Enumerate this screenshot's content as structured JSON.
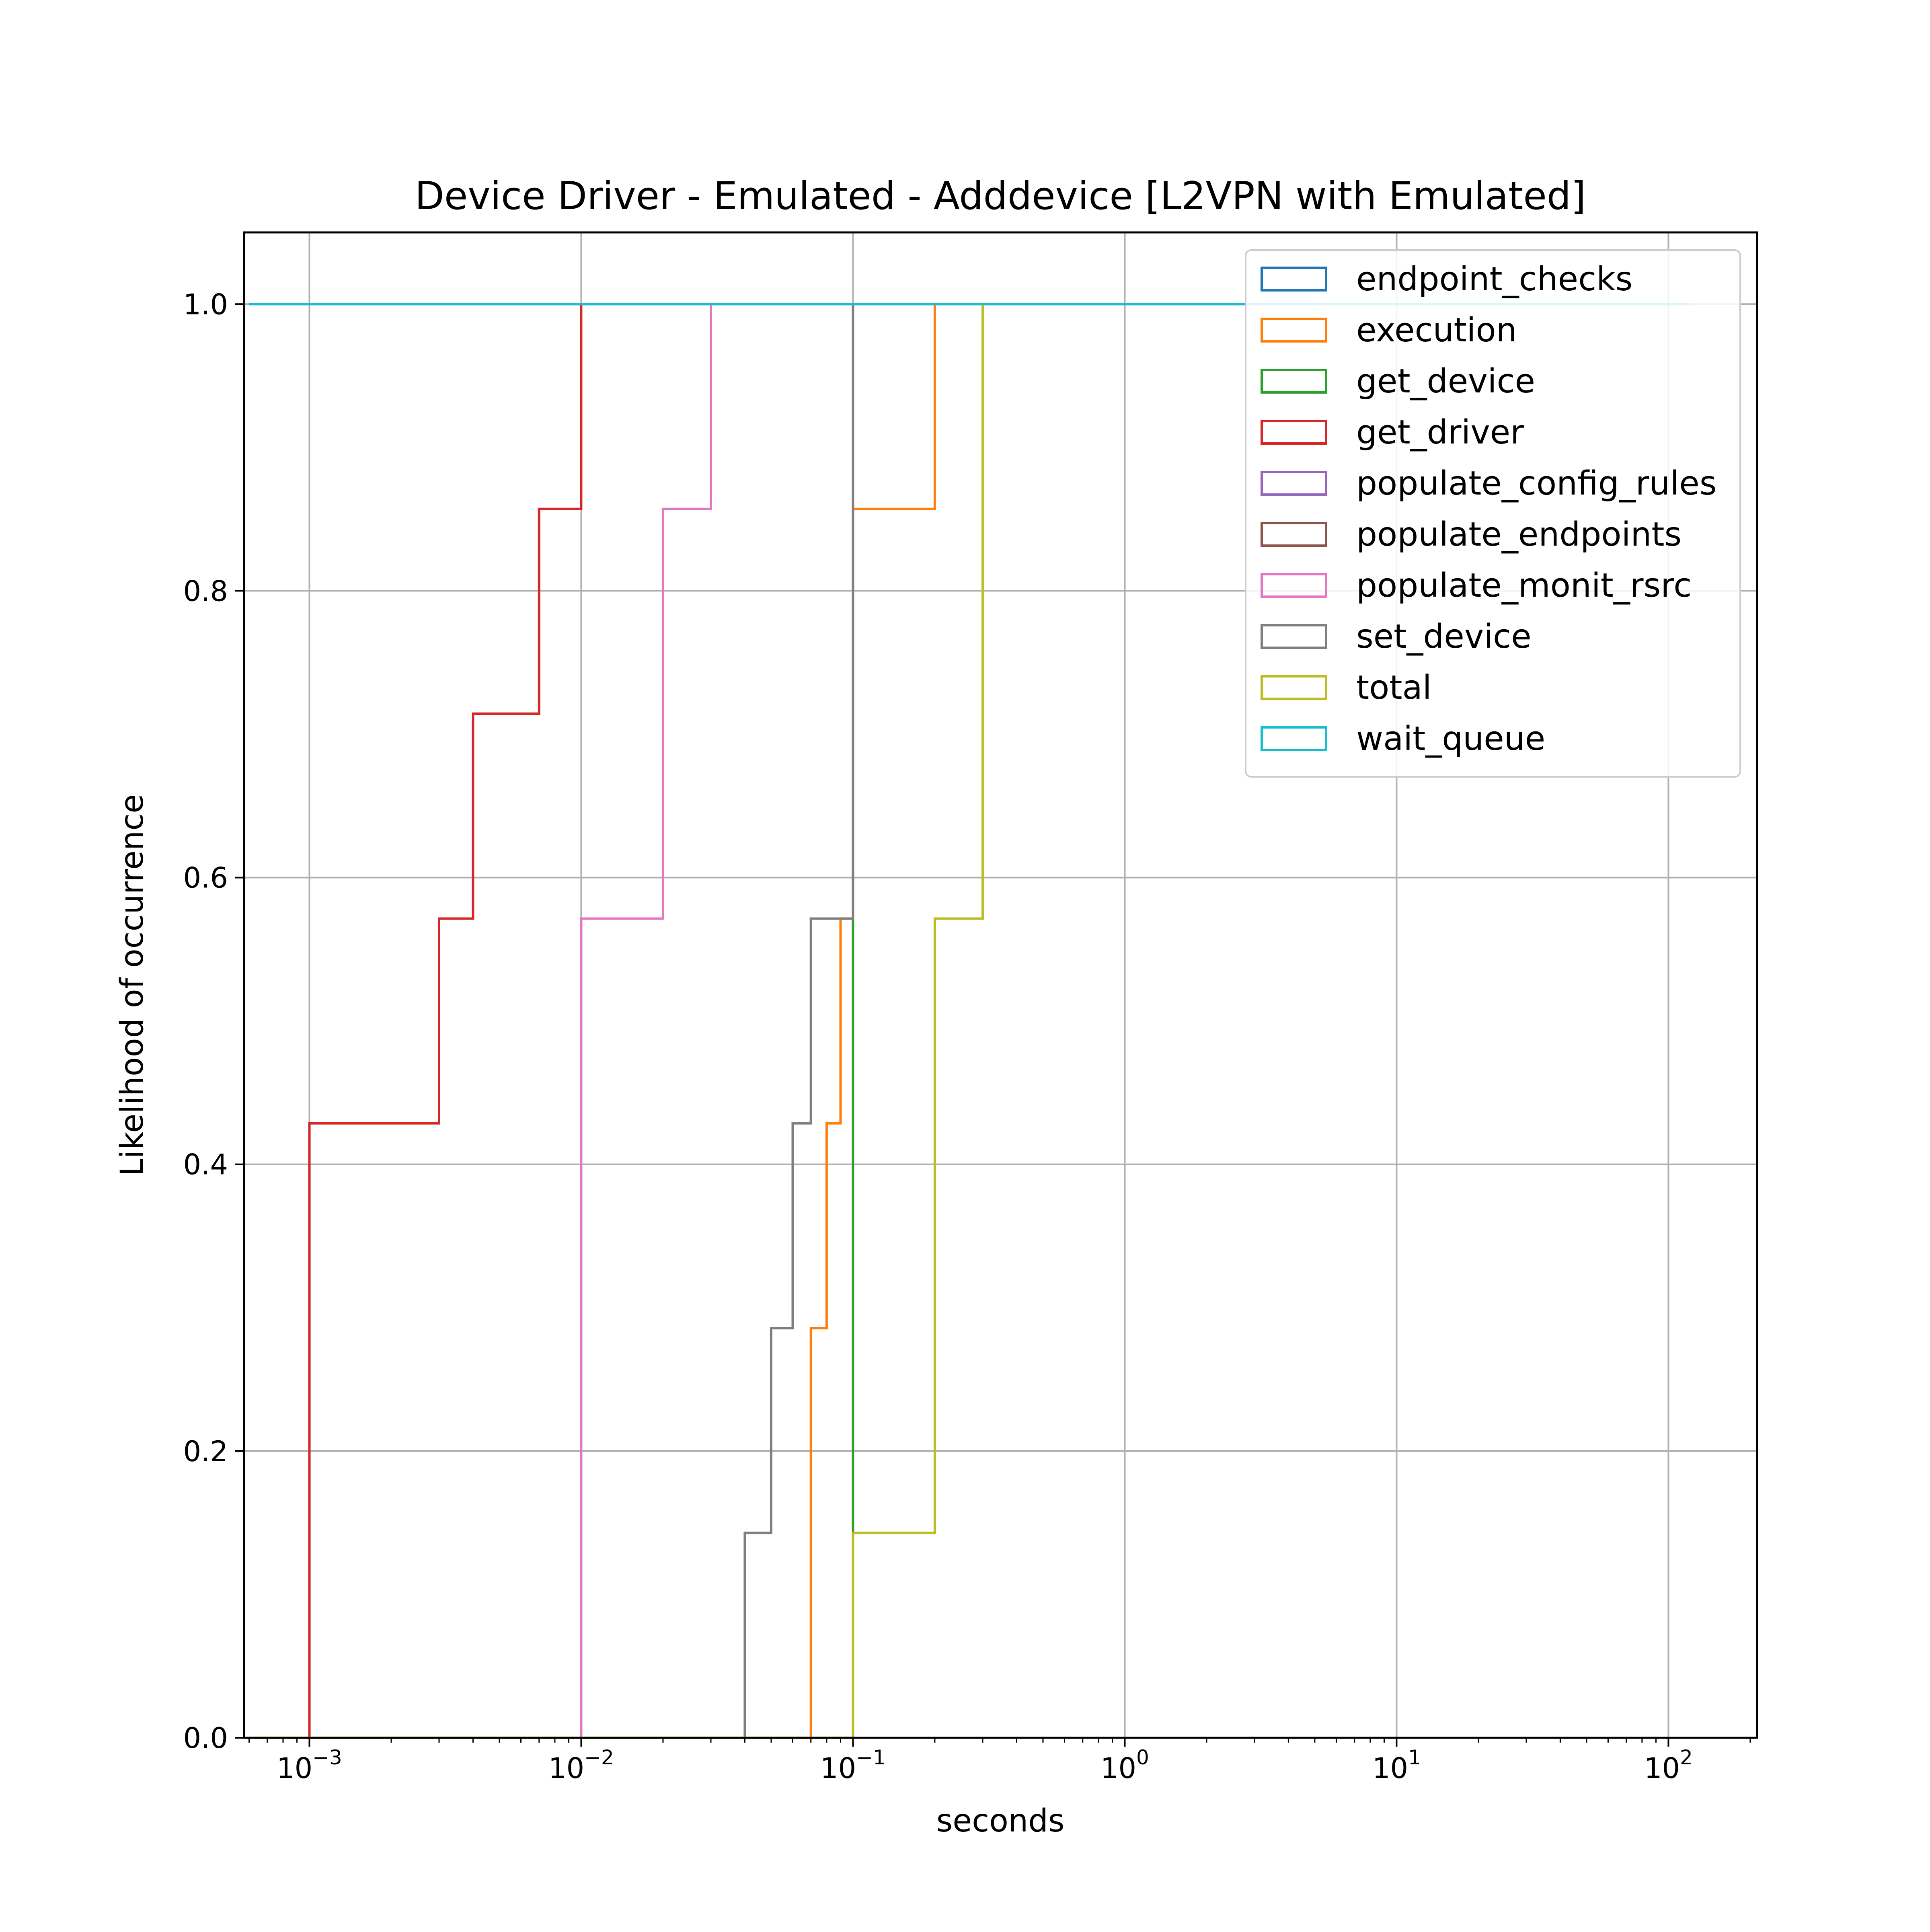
{
  "chart_data": {
    "type": "step-histogram",
    "title": "Device Driver - Emulated - Adddevice [L2VPN with Emulated]",
    "xlabel": "seconds",
    "ylabel": "Likelihood of occurrence",
    "xscale": "log",
    "xlim": [
      0.000575,
      212
    ],
    "ylim": [
      0,
      1.05
    ],
    "grid": true,
    "legend_position": "top-right",
    "x_ticks": [
      {
        "value": 0.001,
        "base": "10",
        "exp": "−3"
      },
      {
        "value": 0.01,
        "base": "10",
        "exp": "−2"
      },
      {
        "value": 0.1,
        "base": "10",
        "exp": "−1"
      },
      {
        "value": 1,
        "base": "10",
        "exp": "0"
      },
      {
        "value": 10,
        "base": "10",
        "exp": "1"
      },
      {
        "value": 100,
        "base": "10",
        "exp": "2"
      }
    ],
    "y_ticks": [
      {
        "value": 0.0,
        "label": "0.0"
      },
      {
        "value": 0.2,
        "label": "0.2"
      },
      {
        "value": 0.4,
        "label": "0.4"
      },
      {
        "value": 0.6,
        "label": "0.6"
      },
      {
        "value": 0.8,
        "label": "0.8"
      },
      {
        "value": 1.0,
        "label": "1.0"
      }
    ],
    "series": [
      {
        "name": "endpoint_checks",
        "color": "#1f77b4",
        "points": [
          [
            0.0006,
            1.0
          ],
          [
            120,
            1.0
          ]
        ]
      },
      {
        "name": "execution",
        "color": "#ff7f0e",
        "points": [
          [
            0.0006,
            0.0
          ],
          [
            0.07,
            0.0
          ],
          [
            0.07,
            0.2857
          ],
          [
            0.08,
            0.2857
          ],
          [
            0.08,
            0.4286
          ],
          [
            0.09,
            0.4286
          ],
          [
            0.09,
            0.5714
          ],
          [
            0.1,
            0.5714
          ],
          [
            0.1,
            0.8571
          ],
          [
            0.2,
            0.8571
          ],
          [
            0.2,
            1.0
          ]
        ]
      },
      {
        "name": "get_device",
        "color": "#2ca02c",
        "points": [
          [
            0.1,
            0.1429
          ],
          [
            0.1,
            0.5714
          ]
        ]
      },
      {
        "name": "get_driver",
        "color": "#d62728",
        "points": [
          [
            0.001,
            0.0
          ],
          [
            0.001,
            0.4286
          ],
          [
            0.003,
            0.4286
          ],
          [
            0.003,
            0.5714
          ],
          [
            0.004,
            0.5714
          ],
          [
            0.004,
            0.7143
          ],
          [
            0.007,
            0.7143
          ],
          [
            0.007,
            0.8571
          ],
          [
            0.01,
            0.8571
          ],
          [
            0.01,
            1.0
          ]
        ]
      },
      {
        "name": "populate_config_rules",
        "color": "#9467bd",
        "points": []
      },
      {
        "name": "populate_endpoints",
        "color": "#8c564b",
        "points": []
      },
      {
        "name": "populate_monit_rsrc",
        "color": "#e377c2",
        "points": [
          [
            0.01,
            0.0
          ],
          [
            0.01,
            0.5714
          ],
          [
            0.02,
            0.5714
          ],
          [
            0.02,
            0.8571
          ],
          [
            0.03,
            0.8571
          ],
          [
            0.03,
            1.0
          ]
        ]
      },
      {
        "name": "set_device",
        "color": "#7f7f7f",
        "points": [
          [
            0.04,
            0.0
          ],
          [
            0.04,
            0.1429
          ],
          [
            0.05,
            0.1429
          ],
          [
            0.05,
            0.2857
          ],
          [
            0.06,
            0.2857
          ],
          [
            0.06,
            0.4286
          ],
          [
            0.07,
            0.4286
          ],
          [
            0.07,
            0.5714
          ],
          [
            0.1,
            0.5714
          ],
          [
            0.1,
            1.0
          ]
        ]
      },
      {
        "name": "total",
        "color": "#bcbd22",
        "points": [
          [
            0.0006,
            0.0
          ],
          [
            0.1,
            0.0
          ],
          [
            0.1,
            0.1429
          ],
          [
            0.2,
            0.1429
          ],
          [
            0.2,
            0.5714
          ],
          [
            0.3,
            0.5714
          ],
          [
            0.3,
            1.0
          ]
        ]
      },
      {
        "name": "wait_queue",
        "color": "#17becf",
        "points": [
          [
            0.0006,
            1.0
          ],
          [
            120,
            1.0
          ]
        ]
      }
    ]
  }
}
